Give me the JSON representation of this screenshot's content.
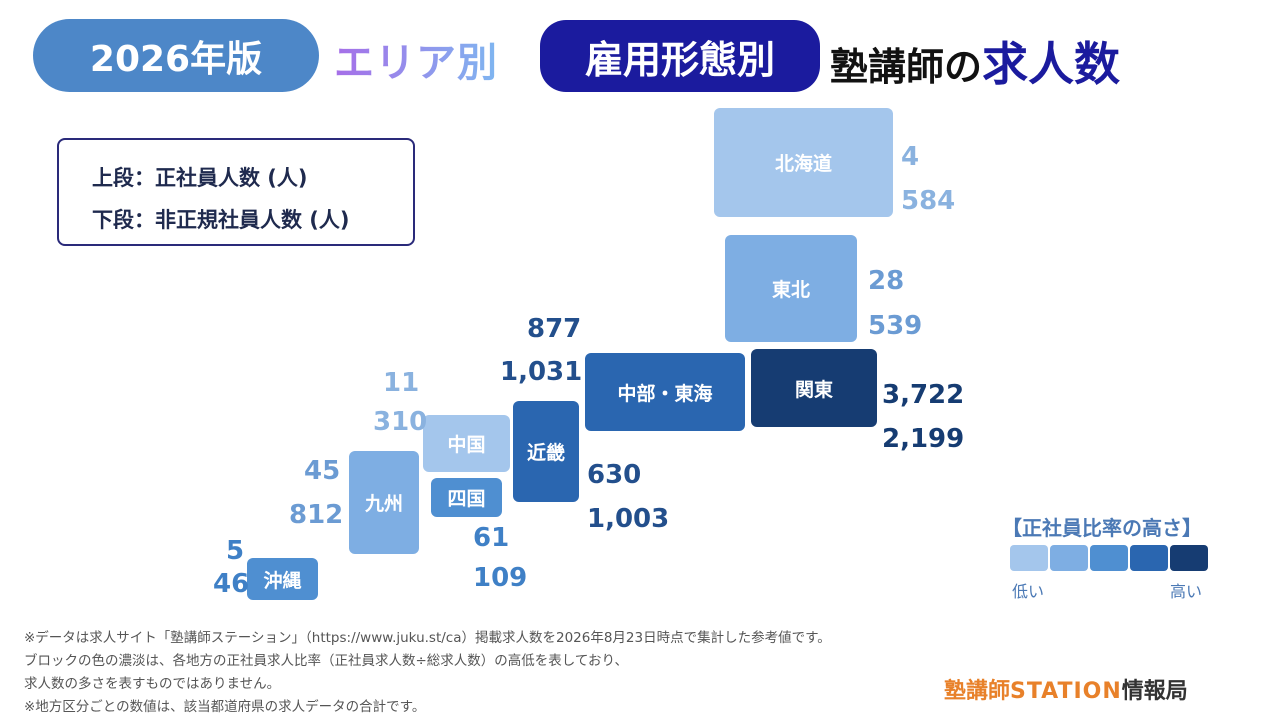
{
  "header": {
    "year_badge": "2026年版",
    "area_label": "エリア別",
    "employ_badge": "雇用形態別",
    "title_prefix": "塾講師の",
    "title_accent": "求人数"
  },
  "legend_box": {
    "upper": "上段：正社員人数 (人)",
    "lower": "下段：非正規社員人数 (人)"
  },
  "chart_data": {
    "type": "table",
    "regions": [
      {
        "name": "北海道",
        "fulltime": "4",
        "nonregular": "584",
        "shade": 1
      },
      {
        "name": "東北",
        "fulltime": "28",
        "nonregular": "539",
        "shade": 2
      },
      {
        "name": "関東",
        "fulltime": "3,722",
        "nonregular": "2,199",
        "shade": 5
      },
      {
        "name": "中部・東海",
        "fulltime": "877",
        "nonregular": "1,031",
        "shade": 4
      },
      {
        "name": "近畿",
        "fulltime": "630",
        "nonregular": "1,003",
        "shade": 4
      },
      {
        "name": "中国",
        "fulltime": "11",
        "nonregular": "310",
        "shade": 1
      },
      {
        "name": "四国",
        "fulltime": "61",
        "nonregular": "109",
        "shade": 3
      },
      {
        "name": "九州",
        "fulltime": "45",
        "nonregular": "812",
        "shade": 2
      },
      {
        "name": "沖縄",
        "fulltime": "5",
        "nonregular": "46",
        "shade": 3
      }
    ]
  },
  "colors": {
    "shade1": "#a4c6ec",
    "shade2": "#7eaee3",
    "shade3": "#4f8fd1",
    "shade4": "#2a66b0",
    "shade5": "#163c72",
    "num1": "#8ab2df",
    "num2": "#6b9bd3",
    "num3": "#3f80c6",
    "num4": "#234f8c",
    "num5": "#163c72"
  },
  "scale": {
    "title": "【正社員比率の高さ】",
    "low": "低い",
    "high": "高い"
  },
  "notes": [
    "※データは求人サイト「塾講師ステーション」（https://www.juku.st/ca）掲載求人数を2026年8月23日時点で集計した参考値です。",
    "ブロックの色の濃淡は、各地方の正社員求人比率（正社員求人数÷総求人数）の高低を表しており、",
    "求人数の多さを表すものではありません。",
    "※地方区分ごとの数値は、該当都道府県の求人データの合計です。"
  ],
  "brand": {
    "part1": "塾講師",
    "part2": "STATION",
    "part3": "情報局"
  }
}
